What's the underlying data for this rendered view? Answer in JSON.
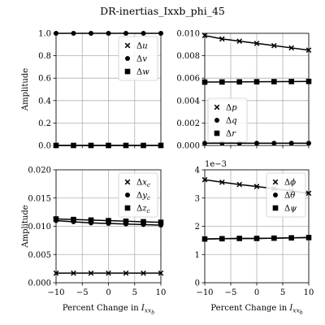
{
  "title": "DR-inertias_Ixxb_phi_45",
  "chart_data": [
    {
      "type": "line",
      "panel": "top-left",
      "x": [
        -10,
        -6.67,
        -3.33,
        0,
        3.33,
        6.67,
        10
      ],
      "xlim": [
        -10,
        10
      ],
      "ylim": [
        0,
        1.0
      ],
      "yticks": [
        "0.0",
        "0.2",
        "0.4",
        "0.6",
        "0.8",
        "1.0"
      ],
      "xticks": [],
      "ylabel": "Amplitude",
      "xlabel": "",
      "exponent": "",
      "legend": "upper right",
      "grid": true,
      "series": [
        {
          "name": "Δu",
          "marker": "x",
          "values": [
            0.0,
            0.0,
            0.0,
            0.0,
            0.0,
            0.0,
            0.0
          ]
        },
        {
          "name": "Δv",
          "marker": "o",
          "values": [
            1.0,
            1.0,
            1.0,
            1.0,
            1.0,
            1.0,
            1.0
          ]
        },
        {
          "name": "Δw",
          "marker": "s",
          "values": [
            0.0,
            0.0,
            0.0,
            0.0,
            0.0,
            0.0,
            0.0
          ]
        }
      ]
    },
    {
      "type": "line",
      "panel": "top-right",
      "x": [
        -10,
        -6.67,
        -3.33,
        0,
        3.33,
        6.67,
        10
      ],
      "xlim": [
        -10,
        10
      ],
      "ylim": [
        0,
        0.01
      ],
      "yticks": [
        "0.000",
        "0.002",
        "0.004",
        "0.006",
        "0.008",
        "0.010"
      ],
      "xticks": [],
      "ylabel": "",
      "xlabel": "",
      "exponent": "",
      "legend": "lower left",
      "grid": true,
      "series": [
        {
          "name": "Δp",
          "marker": "x",
          "values": [
            0.0098,
            0.0095,
            0.0093,
            0.0091,
            0.0089,
            0.0087,
            0.0085
          ]
        },
        {
          "name": "Δq",
          "marker": "o",
          "values": [
            0.0002,
            0.0002,
            0.0002,
            0.0002,
            0.0002,
            0.0002,
            0.0002
          ]
        },
        {
          "name": "Δr",
          "marker": "s",
          "values": [
            0.00565,
            0.00566,
            0.00567,
            0.00568,
            0.00569,
            0.0057,
            0.00571
          ]
        }
      ]
    },
    {
      "type": "line",
      "panel": "bottom-left",
      "x": [
        -10,
        -6.67,
        -3.33,
        0,
        3.33,
        6.67,
        10
      ],
      "xlim": [
        -10,
        10
      ],
      "ylim": [
        0,
        0.02
      ],
      "yticks": [
        "0.000",
        "0.005",
        "0.010",
        "0.015",
        "0.020"
      ],
      "xticks": [
        "−10",
        "−5",
        "0",
        "5",
        "10"
      ],
      "ylabel": "Amplitude",
      "xlabel": "Percent Change in I_xx_b",
      "exponent": "",
      "legend": "upper right",
      "grid": true,
      "series": [
        {
          "name": "Δx_c",
          "marker": "x",
          "values": [
            0.0017,
            0.0017,
            0.0017,
            0.0017,
            0.0017,
            0.0017,
            0.0017
          ]
        },
        {
          "name": "Δy_c",
          "marker": "o",
          "values": [
            0.011,
            0.0108,
            0.0106,
            0.0105,
            0.0104,
            0.0103,
            0.0102
          ]
        },
        {
          "name": "Δz_c",
          "marker": "s",
          "values": [
            0.0113,
            0.0112,
            0.0111,
            0.011,
            0.0109,
            0.0108,
            0.0107
          ]
        }
      ]
    },
    {
      "type": "line",
      "panel": "bottom-right",
      "x": [
        -10,
        -6.67,
        -3.33,
        0,
        3.33,
        6.67,
        10
      ],
      "xlim": [
        -10,
        10
      ],
      "ylim": [
        0,
        4
      ],
      "yticks": [
        "0",
        "1",
        "2",
        "3",
        "4"
      ],
      "xticks": [
        "−10",
        "−5",
        "0",
        "5",
        "10"
      ],
      "ylabel": "",
      "xlabel": "Percent Change in I_xx_b",
      "exponent": "1e−3",
      "legend": "upper right",
      "grid": true,
      "series": [
        {
          "name": "Δϕ",
          "marker": "x",
          "values": [
            3.65,
            3.56,
            3.48,
            3.41,
            3.33,
            3.25,
            3.17
          ]
        },
        {
          "name": "Δθ",
          "marker": "o",
          "values": [
            1.55,
            1.56,
            1.57,
            1.57,
            1.58,
            1.59,
            1.6
          ]
        },
        {
          "name": "Δψ",
          "marker": "s",
          "values": [
            1.55,
            1.56,
            1.57,
            1.57,
            1.58,
            1.59,
            1.6
          ]
        }
      ]
    }
  ]
}
